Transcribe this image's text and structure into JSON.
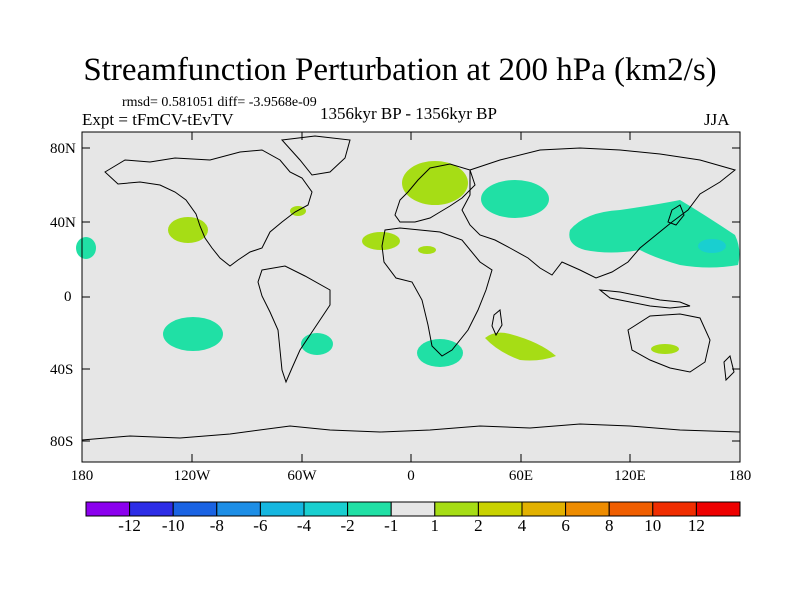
{
  "title": "Streamfunction Perturbation at 200 hPa (km2/s)",
  "stats": "rmsd= 0.581051 diff= -3.9568e-09",
  "experiment": "Expt = tFmCV-tEvTV",
  "period": "1356kyr BP - 1356kyr BP",
  "season": "JJA",
  "lat_labels": [
    "80N",
    "40N",
    "0",
    "40S",
    "80S"
  ],
  "lon_labels": [
    "180",
    "120W",
    "60W",
    "0",
    "60E",
    "120E",
    "180"
  ],
  "colorbar": {
    "labels": [
      "-12",
      "-10",
      "-8",
      "-6",
      "-4",
      "-2",
      "-1",
      "1",
      "2",
      "4",
      "6",
      "8",
      "10",
      "12"
    ],
    "colors": [
      "#8b00ee",
      "#2d2de6",
      "#1a63e3",
      "#1d8ee6",
      "#16b7e0",
      "#19cfd0",
      "#20e0a5",
      "#e6e6e6",
      "#a6dd15",
      "#c9d200",
      "#e2b100",
      "#ee8c00",
      "#f05e00",
      "#f02d00",
      "#ee0000"
    ]
  },
  "colors": {
    "ocean": "#e6e6e6",
    "positive": "#a6dd15",
    "negative": "#20e0a5",
    "negative_deep": "#19cfd0"
  }
}
